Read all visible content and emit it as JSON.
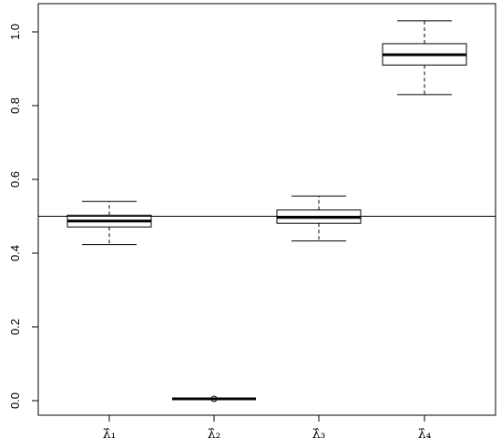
{
  "chart_data": {
    "type": "boxplot",
    "title": "",
    "xlabel": "",
    "ylabel": "",
    "ylim": [
      -0.04,
      1.06
    ],
    "yticks": [
      "0.0",
      "0.2",
      "0.4",
      "0.6",
      "0.8",
      "1.0"
    ],
    "yticks_values": [
      0.0,
      0.2,
      0.4,
      0.6,
      0.8,
      1.0
    ],
    "reference_line": 0.5,
    "grid": false,
    "legend": "none",
    "series": [
      {
        "label": "λ̂₁",
        "lower_whisker": 0.423,
        "q1": 0.471,
        "median": 0.487,
        "q3": 0.503,
        "upper_whisker": 0.54,
        "outliers": []
      },
      {
        "label": "λ̂₂",
        "lower_whisker": 0.005,
        "q1": 0.005,
        "median": 0.005,
        "q3": 0.005,
        "upper_whisker": 0.005,
        "outliers": [
          0.005
        ]
      },
      {
        "label": "λ̂₃",
        "lower_whisker": 0.433,
        "q1": 0.481,
        "median": 0.497,
        "q3": 0.517,
        "upper_whisker": 0.555,
        "outliers": []
      },
      {
        "label": "λ̂₄",
        "lower_whisker": 0.83,
        "q1": 0.91,
        "median": 0.938,
        "q3": 0.968,
        "upper_whisker": 1.03,
        "outliers": []
      }
    ]
  }
}
